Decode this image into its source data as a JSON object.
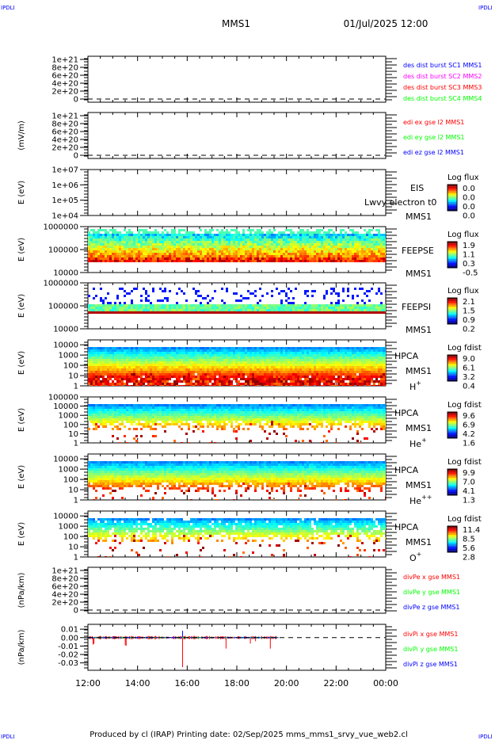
{
  "corner_label": "IPDLI",
  "header": {
    "spacecraft": "MMS1",
    "datetime": "01/Jul/2025 12:00"
  },
  "footer": "Produced by cl (IRAP)   Printing date: 02/Sep/2025   mms_mms1_srvy_vue_web2.cl",
  "colors": {
    "frame": "#000000",
    "red": "#ff0000",
    "green": "#00ff00",
    "blue": "#0000ff",
    "magenta": "#ff00ff"
  },
  "chart_data": {
    "type": "heatmap",
    "x_ticks": [
      "12:00",
      "14:00",
      "16:00",
      "18:00",
      "20:00",
      "22:00",
      "00:00"
    ],
    "x_range": [
      "12:00",
      "00:00"
    ],
    "panels": [
      {
        "kind": "line",
        "ylabel": "",
        "yticks": [
          "1e+21",
          "8e+20",
          "6e+20",
          "4e+20",
          "2e+20",
          "0"
        ],
        "ylim": [
          0,
          1e+21
        ],
        "zero_dashed": true,
        "legend": [
          {
            "text": "des dist burst SC1 MMS1",
            "color": "#0000ff"
          },
          {
            "text": "des dist burst SC2 MMS2",
            "color": "#ff00ff"
          },
          {
            "text": "des dist burst SC3 MMS3",
            "color": "#ff0000"
          },
          {
            "text": "des dist burst SC4 MMS4",
            "color": "#00ff00"
          }
        ]
      },
      {
        "kind": "line",
        "ylabel": "(mV/m)",
        "yticks": [
          "1e+21",
          "8e+20",
          "6e+20",
          "4e+20",
          "2e+20",
          "0"
        ],
        "ylim": [
          0,
          1e+21
        ],
        "zero_dashed": true,
        "legend": [
          {
            "text": "edi ex gse l2 MMS1",
            "color": "#ff0000"
          },
          {
            "text": "edi ey gse l2 MMS1",
            "color": "#00ff00"
          },
          {
            "text": "edi ez gse l2 MMS1",
            "color": "#0000ff"
          }
        ]
      },
      {
        "kind": "spec",
        "style": "empty",
        "ylabel": "E (eV)",
        "yticks": [
          "1e+07",
          "1e+06",
          "1e+05",
          "1e+04"
        ],
        "ylim": [
          10000.0,
          10000000.0
        ],
        "labels": [
          "EIS",
          "MMS1"
        ],
        "overlay": "Lwvy electron t0",
        "cbar": {
          "title": "Log flux",
          "ticks": [
            "0.0",
            "0.0",
            "0.0",
            "0.0"
          ]
        }
      },
      {
        "kind": "spec",
        "style": "feepse",
        "ylabel": "E (eV)",
        "yticks": [
          "1000000",
          "100000",
          "10000"
        ],
        "ylim": [
          10000.0,
          1000000.0
        ],
        "labels": [
          "FEEPSE",
          "MMS1"
        ],
        "cbar": {
          "title": "Log flux",
          "ticks": [
            "1.9",
            "1.1",
            "0.3",
            "-0.5"
          ]
        }
      },
      {
        "kind": "spec",
        "style": "feepsi",
        "ylabel": "E (eV)",
        "yticks": [
          "1000000",
          "100000",
          "10000"
        ],
        "ylim": [
          10000.0,
          1000000.0
        ],
        "labels": [
          "FEEPSI",
          "MMS1"
        ],
        "cbar": {
          "title": "Log flux",
          "ticks": [
            "2.1",
            "1.5",
            "0.9",
            "0.2"
          ]
        }
      },
      {
        "kind": "spec",
        "style": "hpca",
        "ylabel": "E (eV)",
        "yticks": [
          "10000",
          "1000",
          "100",
          "10",
          "1"
        ],
        "ylim": [
          1,
          30000
        ],
        "labels": [
          "HPCA",
          "MMS1",
          "H",
          "+"
        ],
        "cbar": {
          "title": "Log fdist",
          "ticks": [
            "9.0",
            "6.1",
            "3.2",
            "0.4"
          ]
        }
      },
      {
        "kind": "spec",
        "style": "hpca-he",
        "ylabel": "E (eV)",
        "yticks": [
          "100000",
          "10000",
          "1000",
          "100",
          "10",
          "1"
        ],
        "ylim": [
          1,
          100000
        ],
        "labels": [
          "HPCA",
          "MMS1",
          "He",
          "+"
        ],
        "cbar": {
          "title": "Log fdist",
          "ticks": [
            "9.6",
            "6.9",
            "4.2",
            "1.6"
          ]
        }
      },
      {
        "kind": "spec",
        "style": "hpca-hepp",
        "ylabel": "E (eV)",
        "yticks": [
          "10000",
          "1000",
          "100",
          "10",
          "1"
        ],
        "ylim": [
          1,
          30000
        ],
        "labels": [
          "HPCA",
          "MMS1",
          "He",
          "++"
        ],
        "cbar": {
          "title": "Log fdist",
          "ticks": [
            "9.9",
            "7.0",
            "4.1",
            "1.3"
          ]
        }
      },
      {
        "kind": "spec",
        "style": "hpca-o",
        "ylabel": "E (eV)",
        "yticks": [
          "10000",
          "1000",
          "100",
          "10",
          "1"
        ],
        "ylim": [
          1,
          30000
        ],
        "labels": [
          "HPCA",
          "MMS1",
          "O",
          "+"
        ],
        "cbar": {
          "title": "Log fdist",
          "ticks": [
            "11.4",
            "8.5",
            "5.6",
            "2.8"
          ]
        }
      },
      {
        "kind": "line",
        "ylabel": "(nPa/km)",
        "yticks": [
          "1e+21",
          "8e+20",
          "6e+20",
          "4e+20",
          "2e+20",
          "0"
        ],
        "ylim": [
          0,
          1e+21
        ],
        "zero_dashed": true,
        "legend": [
          {
            "text": "divPe x gse MMS1",
            "color": "#ff0000"
          },
          {
            "text": "divPe y gse MMS1",
            "color": "#00ff00"
          },
          {
            "text": "divPe z gse MMS1",
            "color": "#0000ff"
          }
        ]
      },
      {
        "kind": "line",
        "style": "divpi",
        "ylabel": "(nPa/km)",
        "yticks": [
          "0.01",
          "0.00",
          "-0.01",
          "-0.02",
          "-0.03"
        ],
        "ylim": [
          -0.035,
          0.012
        ],
        "zero_dashed": true,
        "data_end": "19:40",
        "legend": [
          {
            "text": "divPi x gse MMS1",
            "color": "#ff0000"
          },
          {
            "text": "divPi y gse MMS1",
            "color": "#00ff00"
          },
          {
            "text": "divPi z gse MMS1",
            "color": "#0000ff"
          }
        ]
      }
    ]
  }
}
